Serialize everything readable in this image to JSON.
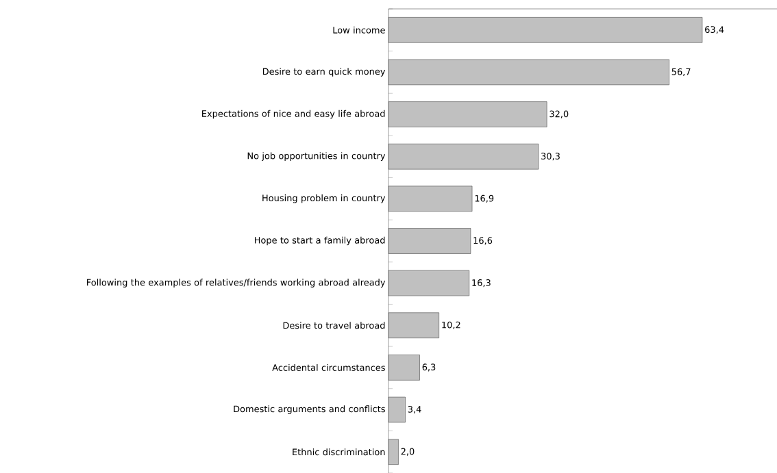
{
  "chart_data": {
    "type": "bar",
    "orientation": "horizontal",
    "categories": [
      "Low income",
      "Desire to earn quick money",
      "Expectations of nice and easy life abroad",
      "No job opportunities in country",
      "Housing problem in country",
      "Hope to start a family abroad",
      "Following the examples of relatives/friends working abroad already",
      "Desire to travel abroad",
      "Accidental circumstances",
      "Domestic arguments and conflicts",
      "Ethnic discrimination"
    ],
    "values": [
      63.4,
      56.7,
      32.0,
      30.3,
      16.9,
      16.6,
      16.3,
      10.2,
      6.3,
      3.4,
      2.0
    ],
    "value_labels": [
      "63,4",
      "56,7",
      "32,0",
      "30,3",
      "16,9",
      "16,6",
      "16,3",
      "10,2",
      "6,3",
      "3,4",
      "2,0"
    ],
    "color": "#c0c0c0",
    "xlim": [
      0,
      78.5
    ],
    "tick_labels": "y"
  }
}
